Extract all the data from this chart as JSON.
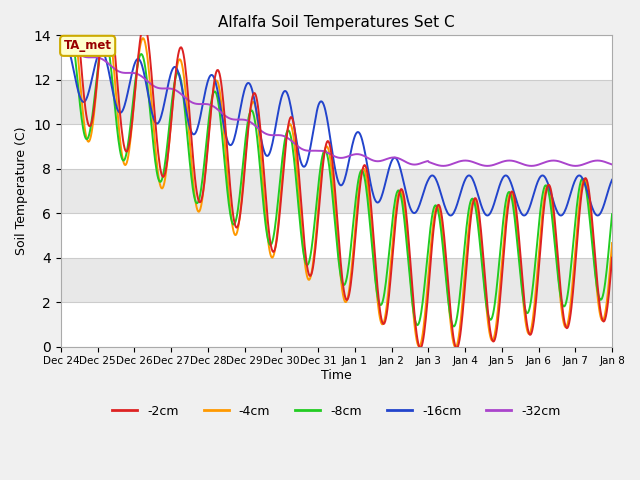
{
  "title": "Alfalfa Soil Temperatures Set C",
  "xlabel": "Time",
  "ylabel": "Soil Temperature (C)",
  "ylim": [
    0,
    14
  ],
  "yticks": [
    0,
    2,
    4,
    6,
    8,
    10,
    12,
    14
  ],
  "background_color": "#f0f0f0",
  "annotation_text": "TA_met",
  "annotation_bg": "#ffffcc",
  "annotation_edge": "#ccaa00",
  "annotation_text_color": "#990000",
  "series_colors": {
    "-2cm": "#dd2222",
    "-4cm": "#ff9900",
    "-8cm": "#22cc22",
    "-16cm": "#2244cc",
    "-32cm": "#aa44cc"
  },
  "x_labels": [
    "Dec 24",
    "Dec 25",
    "Dec 26",
    "Dec 27",
    "Dec 28",
    "Dec 29",
    "Dec 30",
    "Dec 31",
    "Jan 1",
    "Jan 2",
    "Jan 3",
    "Jan 4",
    "Jan 5",
    "Jan 6",
    "Jan 7",
    "Jan 8"
  ],
  "x_tick_positions": [
    0,
    1,
    2,
    3,
    4,
    5,
    6,
    7,
    8,
    9,
    10,
    11,
    12,
    13,
    14,
    15
  ]
}
